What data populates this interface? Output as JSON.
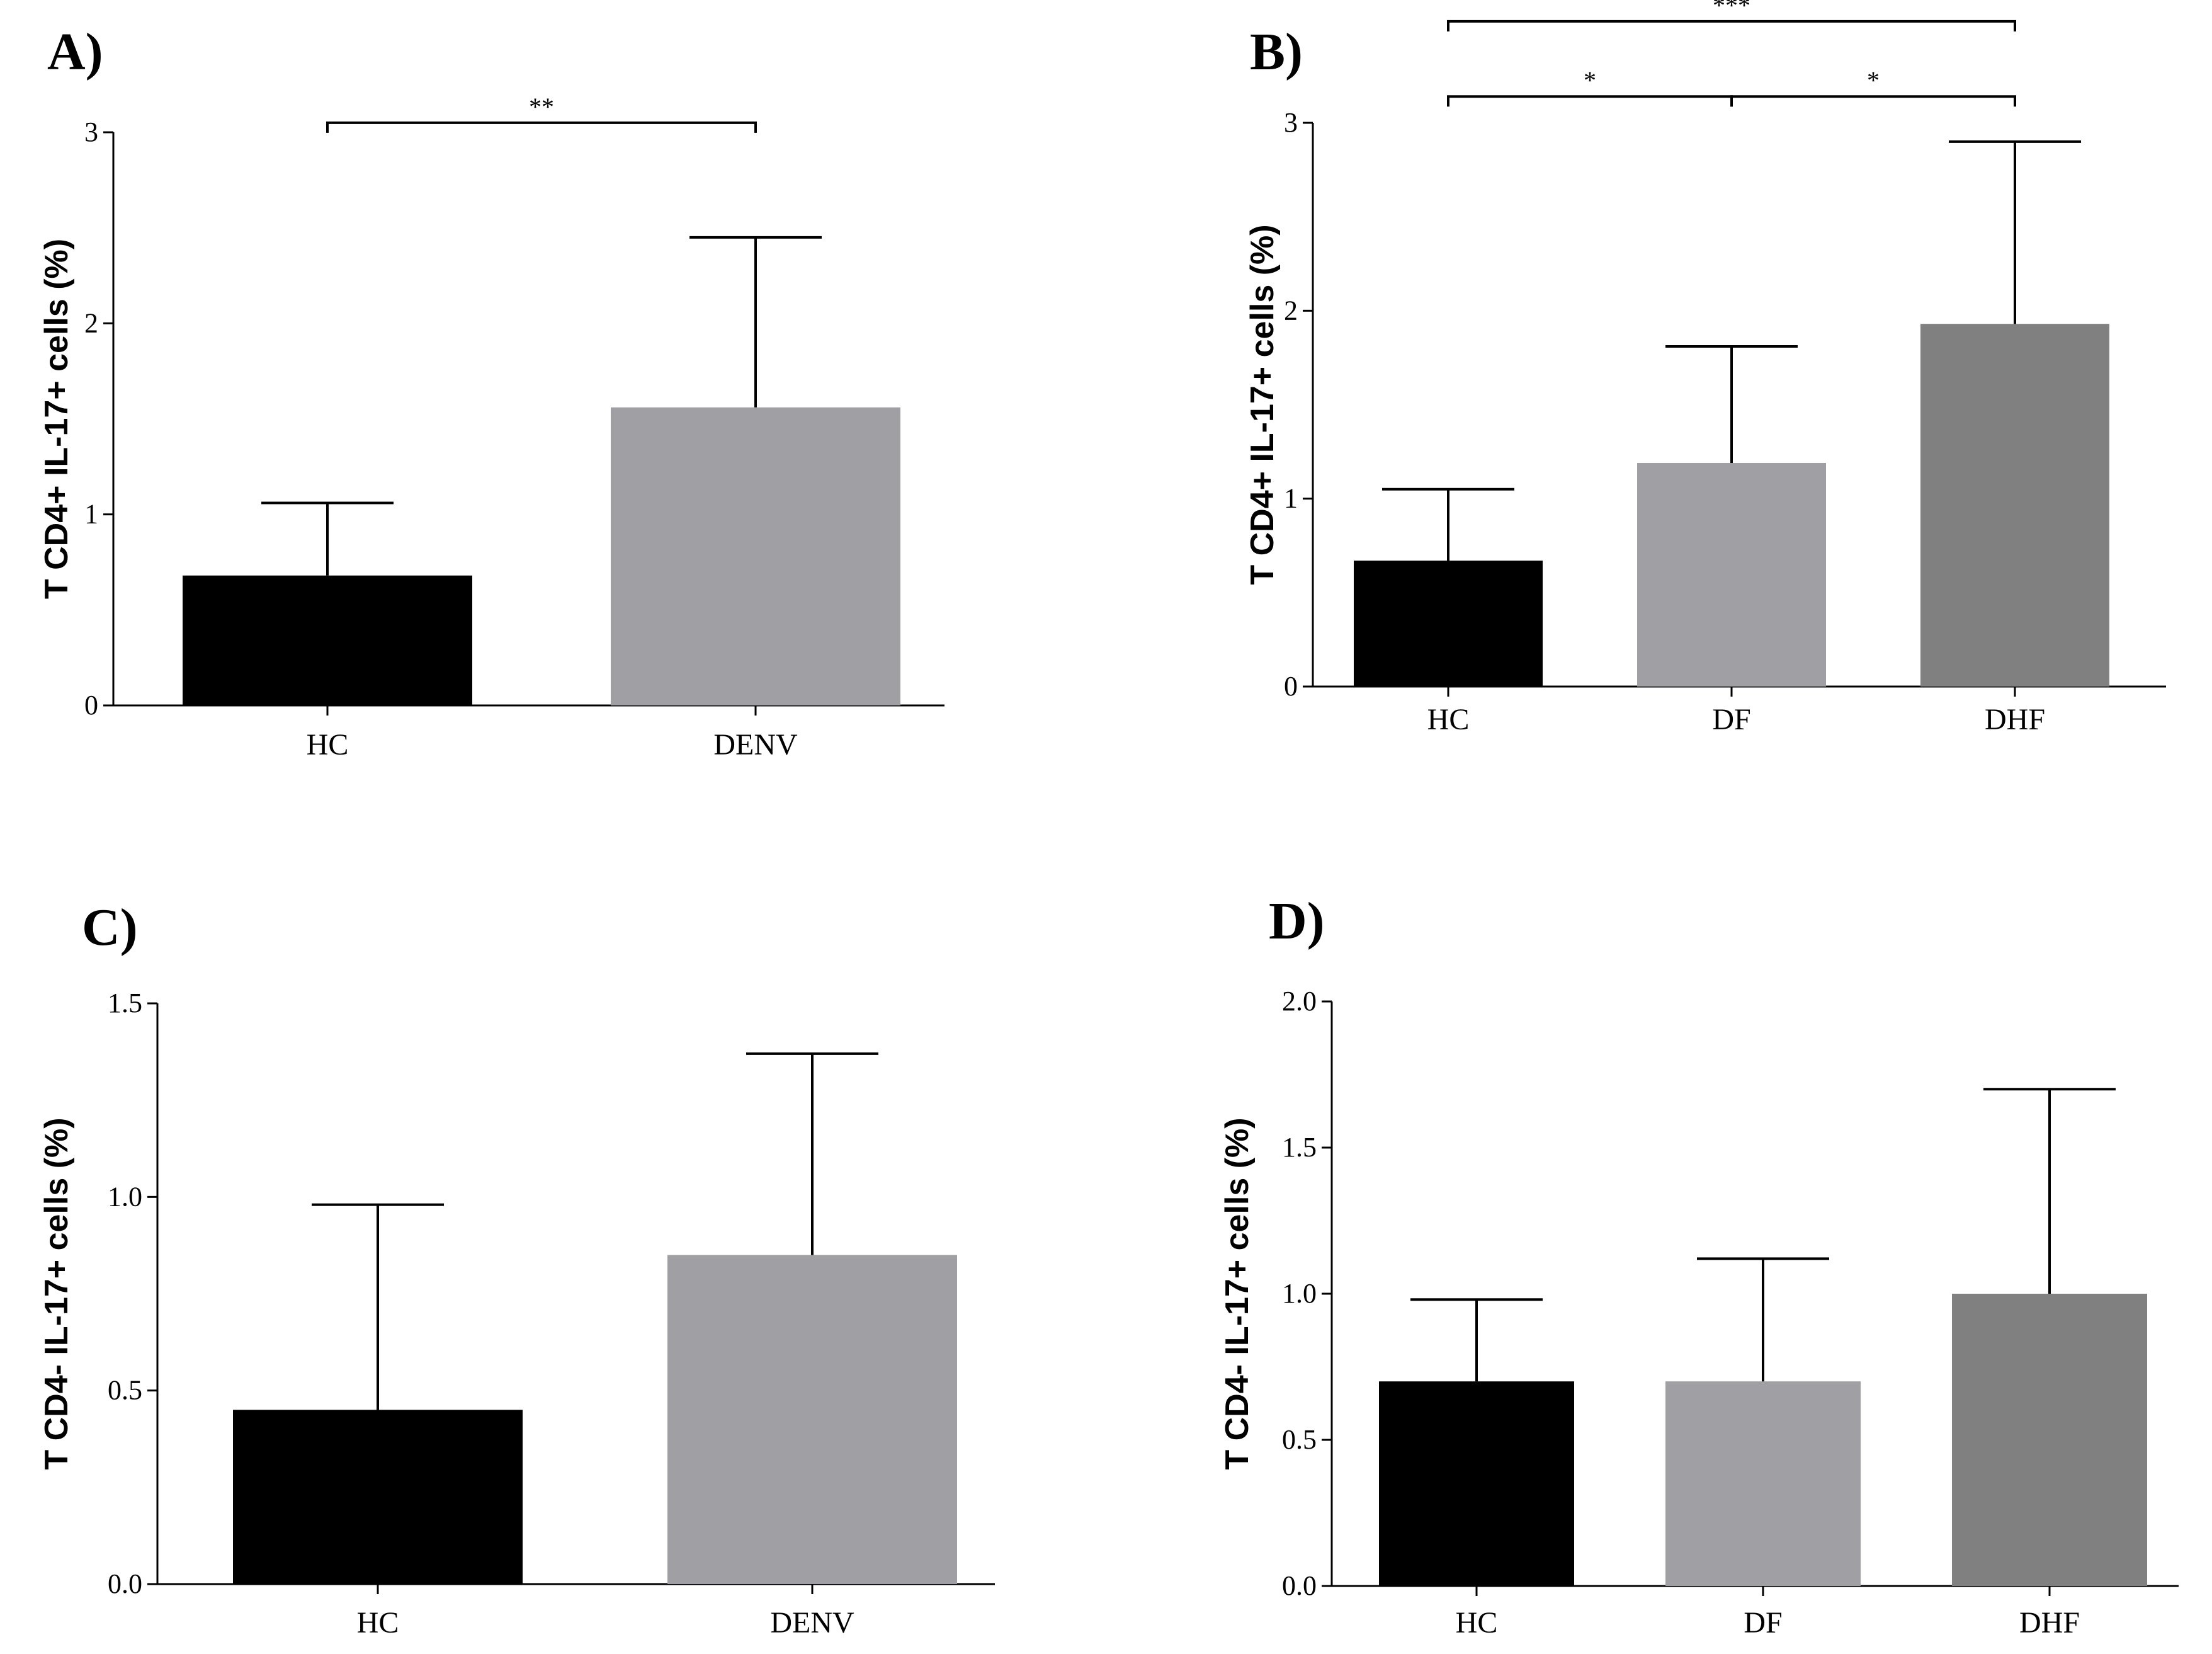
{
  "chart_data": [
    {
      "id": "A",
      "panel_label": "A)",
      "type": "bar",
      "ylabel": "T CD4+ IL-17+ cells (%)",
      "ylim": [
        0,
        3
      ],
      "yticks": [
        "0",
        "1",
        "2",
        "3"
      ],
      "ytick_values": [
        0,
        1,
        2,
        3
      ],
      "categories": [
        "HC",
        "DENV"
      ],
      "values": [
        0.68,
        1.56
      ],
      "errors": [
        0.38,
        0.89
      ],
      "colors": [
        "#000000",
        "#a0a0a4"
      ],
      "significance": [
        {
          "from": 0,
          "to": 1,
          "label": "**",
          "level": 3.05
        }
      ]
    },
    {
      "id": "B",
      "panel_label": "B)",
      "type": "bar",
      "ylabel": "T CD4+ IL-17+ cells (%)",
      "ylim": [
        0,
        3
      ],
      "yticks": [
        "0",
        "1",
        "2",
        "3"
      ],
      "ytick_values": [
        0,
        1,
        2,
        3
      ],
      "categories": [
        "HC",
        "DF",
        "DHF"
      ],
      "values": [
        0.67,
        1.19,
        1.93
      ],
      "errors": [
        0.38,
        0.62,
        0.97
      ],
      "colors": [
        "#000000",
        "#a0a0a4",
        "#808080"
      ],
      "significance": [
        {
          "from": 0,
          "to": 1,
          "label": "*",
          "level": 3.14
        },
        {
          "from": 1,
          "to": 2,
          "label": "*",
          "level": 3.14
        },
        {
          "from": 0,
          "to": 2,
          "label": "***",
          "level": 3.54
        }
      ]
    },
    {
      "id": "C",
      "panel_label": "C)",
      "type": "bar",
      "ylabel": "T CD4- IL-17+ cells (%)",
      "ylim": [
        0,
        1.5
      ],
      "yticks": [
        "0.0",
        "0.5",
        "1.0",
        "1.5"
      ],
      "ytick_values": [
        0,
        0.5,
        1.0,
        1.5
      ],
      "categories": [
        "HC",
        "DENV"
      ],
      "values": [
        0.45,
        0.85
      ],
      "errors": [
        0.53,
        0.52
      ],
      "colors": [
        "#000000",
        "#a0a0a4"
      ],
      "significance": []
    },
    {
      "id": "D",
      "panel_label": "D)",
      "type": "bar",
      "ylabel": "T CD4- IL-17+ cells (%)",
      "ylim": [
        0,
        2.0
      ],
      "yticks": [
        "0.0",
        "0.5",
        "1.0",
        "1.5",
        "2.0"
      ],
      "ytick_values": [
        0,
        0.5,
        1.0,
        1.5,
        2.0
      ],
      "categories": [
        "HC",
        "DF",
        "DHF"
      ],
      "values": [
        0.7,
        0.7,
        1.0
      ],
      "errors": [
        0.28,
        0.42,
        0.7
      ],
      "colors": [
        "#000000",
        "#a0a0a4",
        "#808080"
      ],
      "significance": []
    }
  ]
}
